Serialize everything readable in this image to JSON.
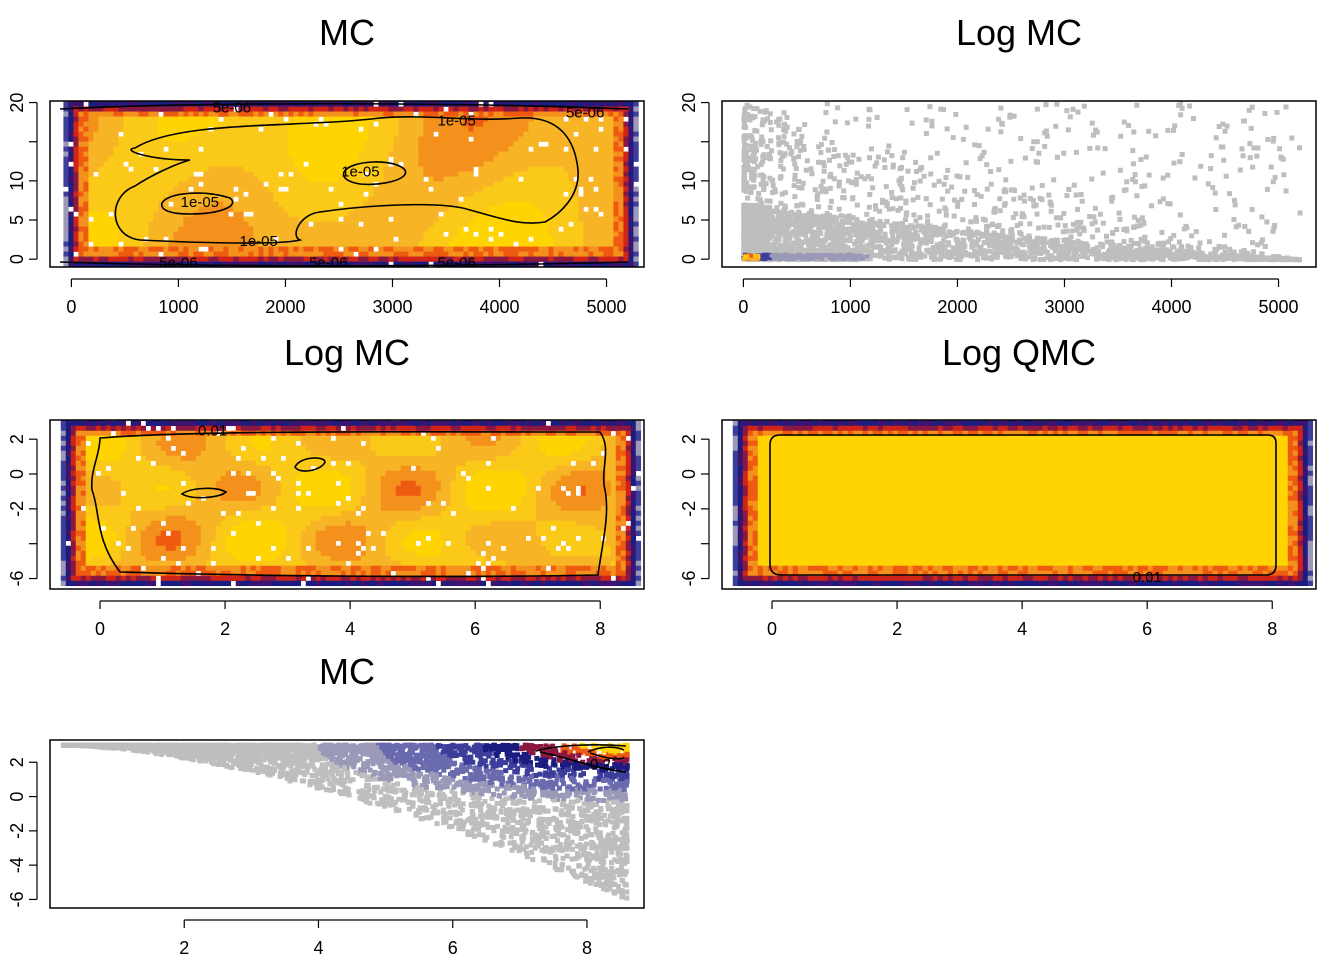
{
  "colors": {
    "low": "#bebebe",
    "ramp": [
      "#bebebe",
      "#9a9ab8",
      "#6a6aae",
      "#3d3d9a",
      "#1c1c80",
      "#3a1470",
      "#8a1840",
      "#d02418",
      "#ee5a10",
      "#f4901c",
      "#f7b425",
      "#fbc918",
      "#ffd400"
    ],
    "contour": "#000000",
    "frame": "#000000"
  },
  "chart_data": [
    {
      "id": "p1",
      "type": "scatter",
      "title": "MC",
      "xlim": [
        0,
        5200
      ],
      "ylim": [
        0,
        20
      ],
      "xticks": [
        "0",
        "1000",
        "2000",
        "3000",
        "4000",
        "5000"
      ],
      "yticks": [
        "0",
        "5",
        "10",
        "20"
      ],
      "density": "uniform-rect",
      "contour_labels": [
        {
          "text": "5e-06",
          "x": 1500,
          "y": 19.4
        },
        {
          "text": "1e-05",
          "x": 3600,
          "y": 17.7
        },
        {
          "text": "5e-06",
          "x": 4800,
          "y": 18.7
        },
        {
          "text": "1e-05",
          "x": 2700,
          "y": 11.2
        },
        {
          "text": "1e-05",
          "x": 1200,
          "y": 7.3
        },
        {
          "text": "1e-05",
          "x": 1750,
          "y": 2.3
        },
        {
          "text": "5e-06",
          "x": 1000,
          "y": -0.4
        },
        {
          "text": "5e-06",
          "x": 2400,
          "y": -0.4
        },
        {
          "text": "5e-06",
          "x": 3600,
          "y": -0.4
        }
      ]
    },
    {
      "id": "p2",
      "type": "scatter",
      "title": "Log MC",
      "xlim": [
        0,
        5200
      ],
      "ylim": [
        0,
        20
      ],
      "xticks": [
        "0",
        "1000",
        "2000",
        "3000",
        "4000",
        "5000"
      ],
      "yticks": [
        "0",
        "5",
        "10",
        "20"
      ],
      "density": "corner-sparse",
      "contour_labels": []
    },
    {
      "id": "p3",
      "type": "scatter",
      "title": "Log MC",
      "xlim": [
        -0.5,
        8.5
      ],
      "ylim": [
        -6,
        3
      ],
      "xticks": [
        "0",
        "2",
        "4",
        "6",
        "8"
      ],
      "yticks": [
        "-6",
        "-2",
        "0",
        "2"
      ],
      "density": "uniform-rect",
      "contour_labels": [
        {
          "text": "0.01",
          "x": 1.8,
          "y": 2.5
        }
      ]
    },
    {
      "id": "p4",
      "type": "scatter",
      "title": "Log QMC",
      "xlim": [
        -0.5,
        8.5
      ],
      "ylim": [
        -6,
        3
      ],
      "xticks": [
        "0",
        "2",
        "4",
        "6",
        "8"
      ],
      "yticks": [
        "-6",
        "-2",
        "0",
        "2"
      ],
      "density": "qmc-rect",
      "contour_labels": [
        {
          "text": "0.01",
          "x": 6.0,
          "y": -5.9
        }
      ]
    },
    {
      "id": "p5",
      "type": "scatter",
      "title": "MC",
      "xlim": [
        0.2,
        8.6
      ],
      "ylim": [
        -6,
        3
      ],
      "xticks": [
        "2",
        "4",
        "6",
        "8"
      ],
      "yticks": [
        "-6",
        "-4",
        "-2",
        "0",
        "2"
      ],
      "density": "corner-dense",
      "contour_labels": [
        {
          "text": "0.2",
          "x": 8.2,
          "y": 1.9
        }
      ]
    }
  ]
}
